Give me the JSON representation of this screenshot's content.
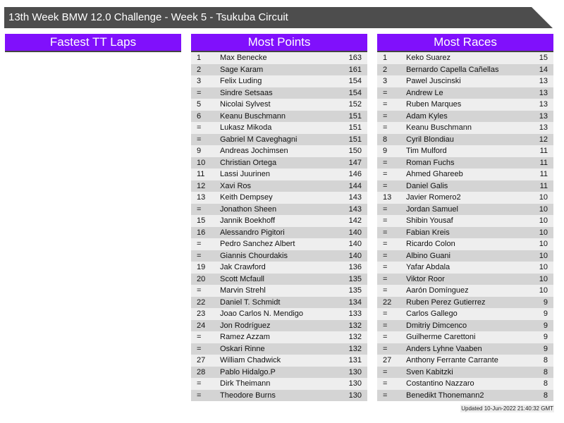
{
  "title": "13th Week BMW 12.0 Challenge - Week 5 - Tsukuba Circuit",
  "colors": {
    "title_bg": "#4d4d4d",
    "header_bg": "#8010fc",
    "row_light": "#eeeeee",
    "row_dark": "#d4d4d4"
  },
  "fastest_tt": {
    "title": "Fastest TT Laps",
    "rows": []
  },
  "most_points": {
    "title": "Most Points",
    "rows": [
      [
        "1",
        "Max Benecke",
        "163"
      ],
      [
        "2",
        "Sage Karam",
        "161"
      ],
      [
        "3",
        "Felix Luding",
        "154"
      ],
      [
        "=",
        "Sindre Setsaas",
        "154"
      ],
      [
        "5",
        "Nicolai Sylvest",
        "152"
      ],
      [
        "6",
        "Keanu Buschmann",
        "151"
      ],
      [
        "=",
        "Lukasz Mikoda",
        "151"
      ],
      [
        "=",
        "Gabriel M Caveghagni",
        "151"
      ],
      [
        "9",
        "Andreas Jochimsen",
        "150"
      ],
      [
        "10",
        "Christian Ortega",
        "147"
      ],
      [
        "11",
        "Lassi Juurinen",
        "146"
      ],
      [
        "12",
        "Xavi Ros",
        "144"
      ],
      [
        "13",
        "Keith Dempsey",
        "143"
      ],
      [
        "=",
        "Jonathon Sheen",
        "143"
      ],
      [
        "15",
        "Jannik Boekhoff",
        "142"
      ],
      [
        "16",
        "Alessandro Pigitori",
        "140"
      ],
      [
        "=",
        "Pedro Sanchez Albert",
        "140"
      ],
      [
        "=",
        "Giannis Chourdakis",
        "140"
      ],
      [
        "19",
        "Jak Crawford",
        "136"
      ],
      [
        "20",
        "Scott Mcfaull",
        "135"
      ],
      [
        "=",
        "Marvin Strehl",
        "135"
      ],
      [
        "22",
        "Daniel T. Schmidt",
        "134"
      ],
      [
        "23",
        "Joao Carlos N. Mendigo",
        "133"
      ],
      [
        "24",
        "Jon Rodríguez",
        "132"
      ],
      [
        "=",
        "Ramez Azzam",
        "132"
      ],
      [
        "=",
        "Oskari Rinne",
        "132"
      ],
      [
        "27",
        "William Chadwick",
        "131"
      ],
      [
        "28",
        "Pablo Hidalgo.P",
        "130"
      ],
      [
        "=",
        "Dirk Theimann",
        "130"
      ],
      [
        "=",
        "Theodore Burns",
        "130"
      ]
    ]
  },
  "most_races": {
    "title": "Most Races",
    "rows": [
      [
        "1",
        "Keko Suarez",
        "15"
      ],
      [
        "2",
        "Bernardo Capella Cañellas",
        "14"
      ],
      [
        "3",
        "Pawel Juscinski",
        "13"
      ],
      [
        "=",
        "Andrew Le",
        "13"
      ],
      [
        "=",
        "Ruben Marques",
        "13"
      ],
      [
        "=",
        "Adam Kyles",
        "13"
      ],
      [
        "=",
        "Keanu Buschmann",
        "13"
      ],
      [
        "8",
        "Cyril Blondiau",
        "12"
      ],
      [
        "9",
        "Tim Mulford",
        "11"
      ],
      [
        "=",
        "Roman Fuchs",
        "11"
      ],
      [
        "=",
        "Ahmed Ghareeb",
        "11"
      ],
      [
        "=",
        "Daniel Galis",
        "11"
      ],
      [
        "13",
        "Javier Romero2",
        "10"
      ],
      [
        "=",
        "Jordan Samuel",
        "10"
      ],
      [
        "=",
        "Shibin Yousaf",
        "10"
      ],
      [
        "=",
        "Fabian Kreis",
        "10"
      ],
      [
        "=",
        "Ricardo Colon",
        "10"
      ],
      [
        "=",
        "Albino Guani",
        "10"
      ],
      [
        "=",
        "Yafar Abdala",
        "10"
      ],
      [
        "=",
        "Viktor Roor",
        "10"
      ],
      [
        "=",
        "Aarón Domínguez",
        "10"
      ],
      [
        "22",
        "Ruben Perez Gutierrez",
        "9"
      ],
      [
        "=",
        "Carlos Gallego",
        "9"
      ],
      [
        "=",
        "Dmitriy Dimcenco",
        "9"
      ],
      [
        "=",
        "Guilherme Carettoni",
        "9"
      ],
      [
        "=",
        "Anders Lyhne Vaaben",
        "9"
      ],
      [
        "27",
        "Anthony Ferrante Carrante",
        "8"
      ],
      [
        "=",
        "Sven Kabitzki",
        "8"
      ],
      [
        "=",
        "Costantino Nazzaro",
        "8"
      ],
      [
        "=",
        "Benedikt Thonemann2",
        "8"
      ]
    ]
  },
  "footer": "Updated 10-Jun-2022 21:40:32 GMT"
}
